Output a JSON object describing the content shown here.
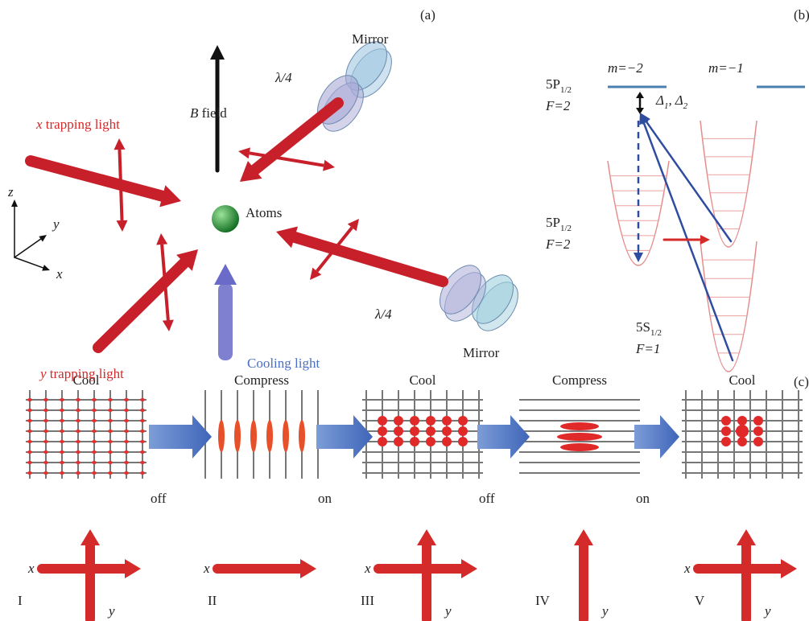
{
  "panel_a": {
    "label": "(a)",
    "mirror_top": "Mirror",
    "waveplate_top": "λ/4",
    "b_field": {
      "var": "B",
      "text": "field"
    },
    "x_light": {
      "var": "x",
      "text": "trapping light"
    },
    "atoms": "Atoms",
    "axes": {
      "z": "z",
      "y": "y",
      "x": "x"
    },
    "waveplate_right": "λ/4",
    "mirror_right": "Mirror",
    "y_light": {
      "var": "y",
      "text": "trapping light"
    },
    "cooling_light": "Cooling light"
  },
  "panel_b": {
    "label": "(b)",
    "m_left": "m=−2",
    "m_right": "m=−1",
    "excited": {
      "term": "5P",
      "sub": "1/2",
      "f": "F=2"
    },
    "detuning": {
      "symbol1": "Δ",
      "sub1": "1",
      "sep": ",",
      "symbol2": "Δ",
      "sub2": "2"
    },
    "middle": {
      "term": "5P",
      "sub": "1/2",
      "f": "F=2"
    },
    "ground": {
      "term": "5S",
      "sub": "1/2",
      "f": "F=1"
    }
  },
  "panel_c": {
    "label": "(c)",
    "stages": [
      {
        "title": "Cool",
        "numeral": "I",
        "x": "x",
        "y": "y"
      },
      {
        "title": "Compress",
        "numeral": "II",
        "x": "x"
      },
      {
        "title": "Cool",
        "numeral": "III",
        "x": "x",
        "y": "y"
      },
      {
        "title": "Compress",
        "numeral": "IV",
        "y": "y"
      },
      {
        "title": "Cool",
        "numeral": "V",
        "x": "x",
        "y": "y"
      }
    ],
    "transitions": [
      "off",
      "on",
      "off",
      "on"
    ]
  }
}
